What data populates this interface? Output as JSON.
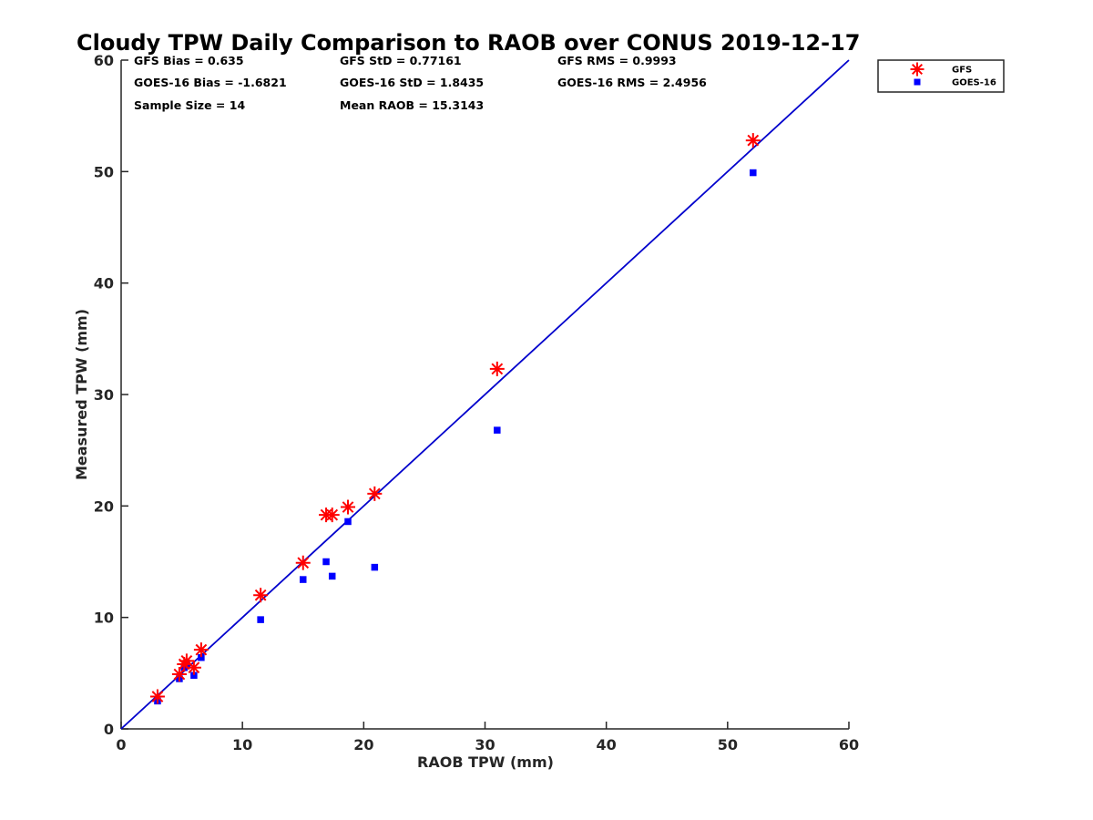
{
  "chart_data": {
    "type": "scatter",
    "title": "Cloudy TPW Daily Comparison to RAOB over CONUS 2019-12-17",
    "xlabel": "RAOB TPW (mm)",
    "ylabel": "Measured TPW (mm)",
    "xlim": [
      0,
      60
    ],
    "ylim": [
      0,
      60
    ],
    "x_ticks": [
      "0",
      "10",
      "20",
      "30",
      "40",
      "50",
      "60"
    ],
    "y_ticks": [
      "0",
      "10",
      "20",
      "30",
      "40",
      "50",
      "60"
    ],
    "grid": false,
    "legend_position": "top-right",
    "reference_line": {
      "x": [
        0,
        60
      ],
      "y": [
        0,
        60
      ],
      "color": "#0000CC"
    },
    "series": [
      {
        "name": "GFS",
        "marker": "asterisk",
        "color": "#FF0000",
        "points": [
          [
            3.0,
            2.9
          ],
          [
            4.8,
            4.9
          ],
          [
            5.2,
            5.8
          ],
          [
            5.4,
            6.1
          ],
          [
            6.0,
            5.5
          ],
          [
            6.6,
            7.1
          ],
          [
            11.5,
            12.0
          ],
          [
            15.0,
            14.9
          ],
          [
            16.9,
            19.2
          ],
          [
            17.4,
            19.2
          ],
          [
            18.7,
            19.9
          ],
          [
            20.9,
            21.1
          ],
          [
            31.0,
            32.3
          ],
          [
            52.1,
            52.8
          ]
        ]
      },
      {
        "name": "GOES-16",
        "marker": "square",
        "color": "#0000FF",
        "points": [
          [
            3.0,
            2.5
          ],
          [
            4.8,
            4.5
          ],
          [
            5.2,
            5.5
          ],
          [
            5.4,
            5.8
          ],
          [
            6.0,
            4.8
          ],
          [
            6.6,
            6.4
          ],
          [
            11.5,
            9.8
          ],
          [
            15.0,
            13.4
          ],
          [
            16.9,
            15.0
          ],
          [
            17.4,
            13.7
          ],
          [
            18.7,
            18.6
          ],
          [
            20.9,
            14.5
          ],
          [
            31.0,
            26.8
          ],
          [
            52.1,
            49.9
          ]
        ]
      }
    ],
    "annotations": [
      "GFS Bias = 0.635",
      "GFS StD = 0.77161",
      "GFS RMS = 0.9993",
      "GOES-16 Bias = -1.6821",
      "GOES-16 StD = 1.8435",
      "GOES-16 RMS = 2.4956",
      "Sample Size = 14",
      "Mean RAOB = 15.3143"
    ]
  }
}
